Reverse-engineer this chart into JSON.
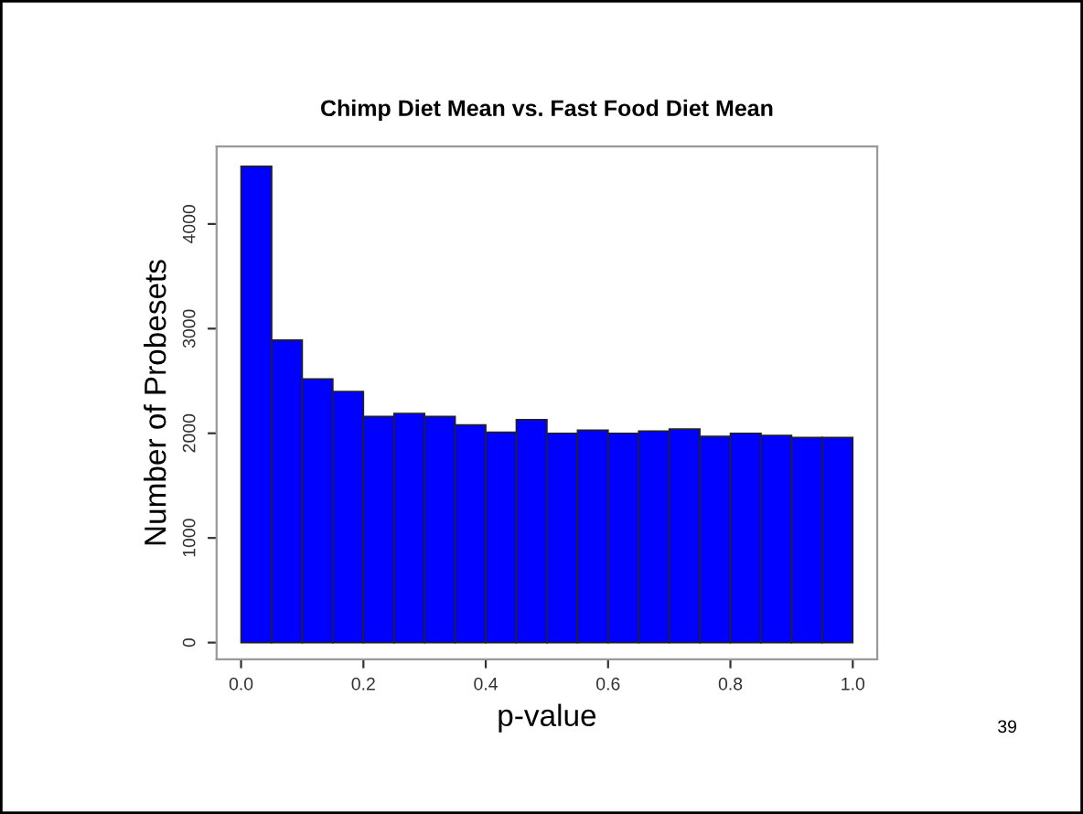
{
  "chart_data": {
    "type": "histogram",
    "title": "Chimp Diet Mean vs. Fast Food Diet Mean",
    "xlabel": "p-value",
    "ylabel": "Number of Probesets",
    "bins": [
      0,
      0.05,
      0.1,
      0.15,
      0.2,
      0.25,
      0.3,
      0.35,
      0.4,
      0.45,
      0.5,
      0.55,
      0.6,
      0.65,
      0.7,
      0.75,
      0.8,
      0.85,
      0.9,
      0.95,
      1.0
    ],
    "values": [
      4550,
      2890,
      2520,
      2400,
      2160,
      2190,
      2160,
      2080,
      2010,
      2130,
      2000,
      2030,
      2000,
      2020,
      2040,
      1970,
      2000,
      1980,
      1960,
      1960
    ],
    "color": "#0000ff",
    "xlim": [
      -0.04,
      1.04
    ],
    "ylim": [
      -160,
      4740
    ],
    "xticks": [
      {
        "value": 0,
        "label": "0.0"
      },
      0.2,
      0.4,
      0.6,
      0.8,
      {
        "value": 1,
        "label": "1.0"
      }
    ],
    "yticks": [
      0,
      1000,
      2000,
      3000,
      4000
    ],
    "grid": false,
    "annotations": [
      "39"
    ]
  }
}
